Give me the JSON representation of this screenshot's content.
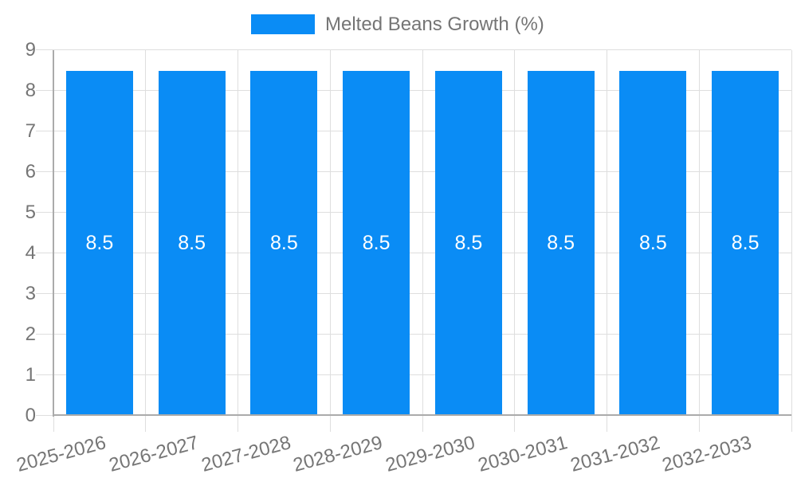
{
  "legend": {
    "label": "Melted Beans Growth (%)"
  },
  "chart_data": {
    "type": "bar",
    "title": "",
    "categories": [
      "2025-2026",
      "2026-2027",
      "2027-2028",
      "2028-2029",
      "2029-2030",
      "2030-2031",
      "2031-2032",
      "2032-2033"
    ],
    "series": [
      {
        "name": "Melted Beans Growth (%)",
        "values": [
          8.5,
          8.5,
          8.5,
          8.5,
          8.5,
          8.5,
          8.5,
          8.5
        ],
        "value_labels": [
          "8.5",
          "8.5",
          "8.5",
          "8.5",
          "8.5",
          "8.5",
          "8.5",
          "8.5"
        ]
      }
    ],
    "ylim": [
      0,
      9
    ],
    "ytick_step": 1,
    "ytick_labels": [
      "0",
      "1",
      "2",
      "3",
      "4",
      "5",
      "6",
      "7",
      "8",
      "9"
    ],
    "grid": true,
    "legend_position": "top",
    "bar_color": "#0a8cf5",
    "value_label_color": "#ffffff",
    "axis_text_color": "#757575",
    "gridline_color": "#dedede",
    "axis_line_color": "#ababab"
  }
}
